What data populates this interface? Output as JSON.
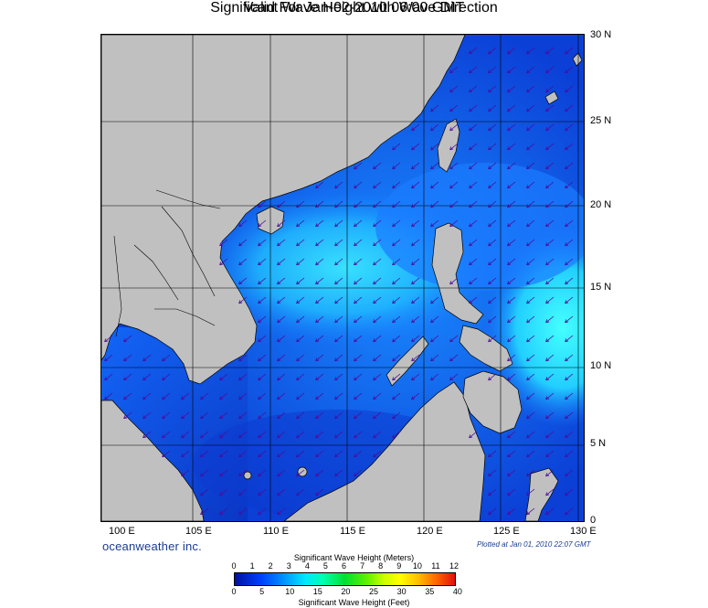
{
  "header": {
    "title": "Significant Wave Height with Wave Direction",
    "subtitle": "Valid For Jan-02-2010 06:00 GMT"
  },
  "map": {
    "lon_range": [
      99,
      130
    ],
    "lat_range": [
      0,
      30
    ],
    "lat_labels": [
      "30 N",
      "25 N",
      "20 N",
      "15 N",
      "10 N",
      "5 N",
      "0"
    ],
    "lon_labels": [
      "100 E",
      "105 E",
      "110 E",
      "115 E",
      "120 E",
      "125 E",
      "130 E"
    ],
    "gridlines": true,
    "land_color": "#c0c0c0",
    "arrow_color": "#4b0c9c",
    "arrow_direction": "toward southwest",
    "sea_colors": {
      "deep": "#0a32c8",
      "mid": "#1268ff",
      "high": "#22c8ff",
      "peak": "#3ef2ff"
    }
  },
  "footer": {
    "brand": "oceanweather inc.",
    "plotted": "Plotted at Jan 01, 2010 22:07 GMT"
  },
  "colorbar": {
    "meters_title": "Significant Wave Height (Meters)",
    "feet_title": "Significant Wave Height (Feet)",
    "meters_ticks": [
      "0",
      "1",
      "2",
      "3",
      "4",
      "5",
      "6",
      "7",
      "8",
      "9",
      "10",
      "11",
      "12"
    ],
    "feet_ticks": [
      "0",
      "5",
      "10",
      "15",
      "20",
      "25",
      "30",
      "35",
      "40"
    ]
  }
}
